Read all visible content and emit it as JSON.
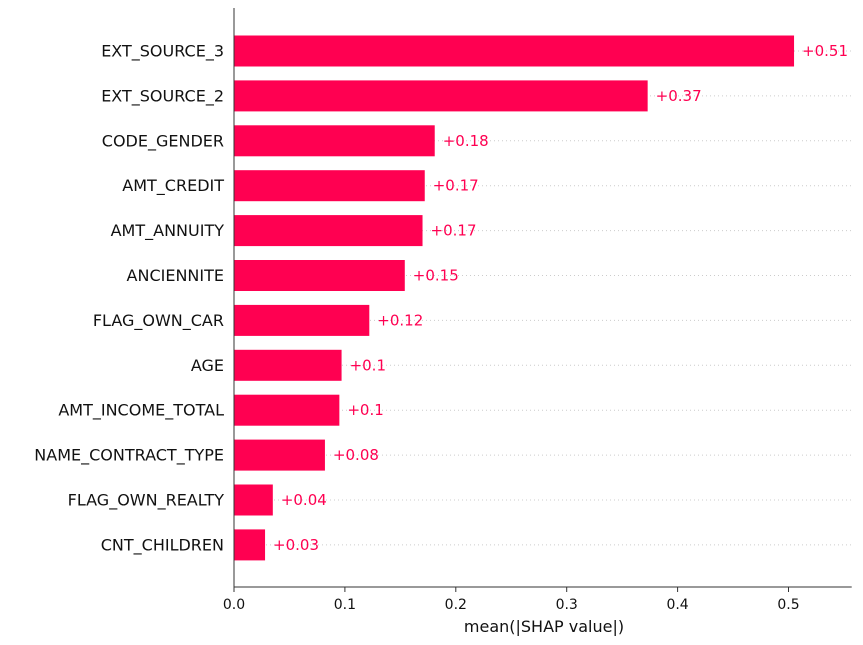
{
  "chart_data": {
    "type": "bar",
    "orientation": "horizontal",
    "categories": [
      "EXT_SOURCE_3",
      "EXT_SOURCE_2",
      "CODE_GENDER",
      "AMT_CREDIT",
      "AMT_ANNUITY",
      "ANCIENNITE",
      "FLAG_OWN_CAR",
      "AGE",
      "AMT_INCOME_TOTAL",
      "NAME_CONTRACT_TYPE",
      "FLAG_OWN_REALTY",
      "CNT_CHILDREN"
    ],
    "values": [
      0.505,
      0.373,
      0.181,
      0.172,
      0.17,
      0.154,
      0.122,
      0.097,
      0.095,
      0.082,
      0.035,
      0.028
    ],
    "value_labels": [
      "+0.51",
      "+0.37",
      "+0.18",
      "+0.17",
      "+0.17",
      "+0.15",
      "+0.12",
      "+0.1",
      "+0.1",
      "+0.08",
      "+0.04",
      "+0.03"
    ],
    "xlabel": "mean(|SHAP value|)",
    "xticks": [
      0.0,
      0.1,
      0.2,
      0.3,
      0.4,
      0.5
    ],
    "xtick_labels": [
      "0.0",
      "0.1",
      "0.2",
      "0.3",
      "0.4",
      "0.5"
    ],
    "xlim": [
      0,
      0.557
    ],
    "grid": "dotted horizontal guide lines per row",
    "bar_color": "#ff0051",
    "axis_color": "#333333",
    "grid_color": "#cccccc"
  }
}
